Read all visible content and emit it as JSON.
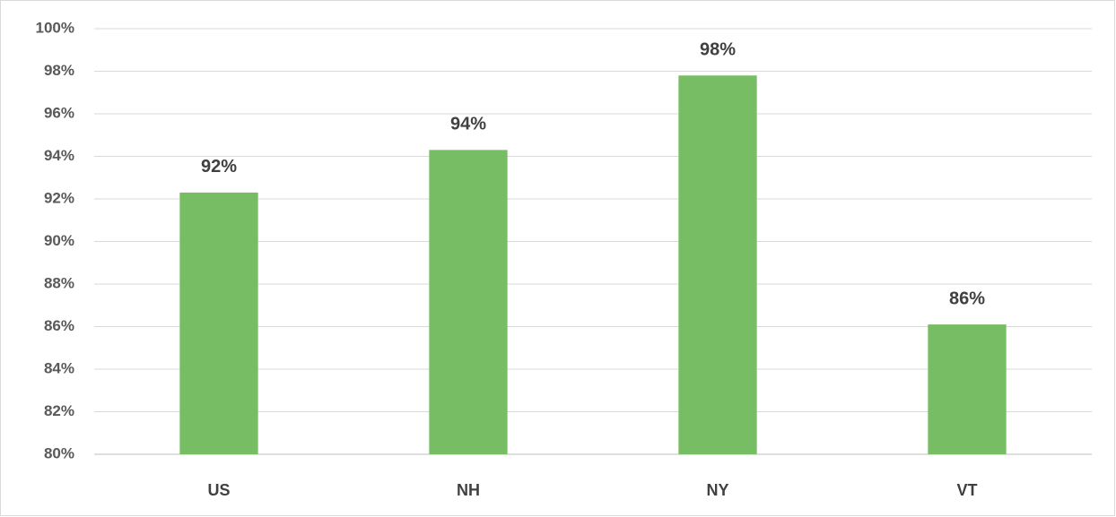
{
  "chart_data": {
    "type": "bar",
    "categories": [
      "US",
      "NH",
      "NY",
      "VT"
    ],
    "values": [
      92.3,
      94.3,
      97.8,
      86.1
    ],
    "value_labels": [
      "92%",
      "94%",
      "98%",
      "86%"
    ],
    "color": "#77bd63",
    "ylim": [
      80,
      100
    ],
    "yticks": [
      {
        "value": 80,
        "label": "80%"
      },
      {
        "value": 82,
        "label": "82%"
      },
      {
        "value": 84,
        "label": "84%"
      },
      {
        "value": 86,
        "label": "86%"
      },
      {
        "value": 88,
        "label": "88%"
      },
      {
        "value": 90,
        "label": "90%"
      },
      {
        "value": 92,
        "label": "92%"
      },
      {
        "value": 94,
        "label": "94%"
      },
      {
        "value": 96,
        "label": "96%"
      },
      {
        "value": 98,
        "label": "98%"
      },
      {
        "value": 100,
        "label": "100%"
      }
    ],
    "grid": true
  }
}
